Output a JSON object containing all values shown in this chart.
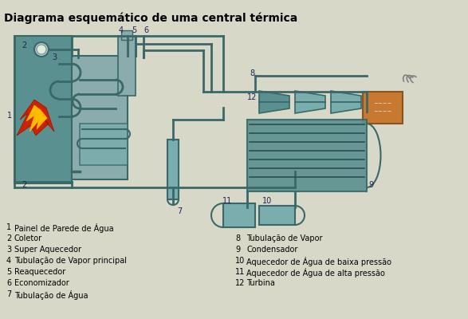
{
  "title": "Diagrama esquemático de uma central térmica",
  "bg_color": "#d8d8c8",
  "teal_light": "#7aadad",
  "teal_mid": "#5a9090",
  "teal_dark": "#3a6868",
  "gray_blue": "#8aacac",
  "orange_brown": "#c87830",
  "legend_left": [
    [
      1,
      "Painel de Parede de Água"
    ],
    [
      2,
      "Coletor"
    ],
    [
      3,
      "Super Aquecedor"
    ],
    [
      4,
      "Tubulação de Vapor principal"
    ],
    [
      5,
      "Reaquecedor"
    ],
    [
      6,
      "Economizador"
    ],
    [
      7,
      "Tubulação de Água"
    ]
  ],
  "legend_right": [
    [
      8,
      "Tubulação de Vapor"
    ],
    [
      9,
      "Condensador"
    ],
    [
      10,
      "Aquecedor de Água de baixa pressão"
    ],
    [
      11,
      "Aquecedor de Água de alta pressão"
    ],
    [
      12,
      "Turbina"
    ]
  ]
}
